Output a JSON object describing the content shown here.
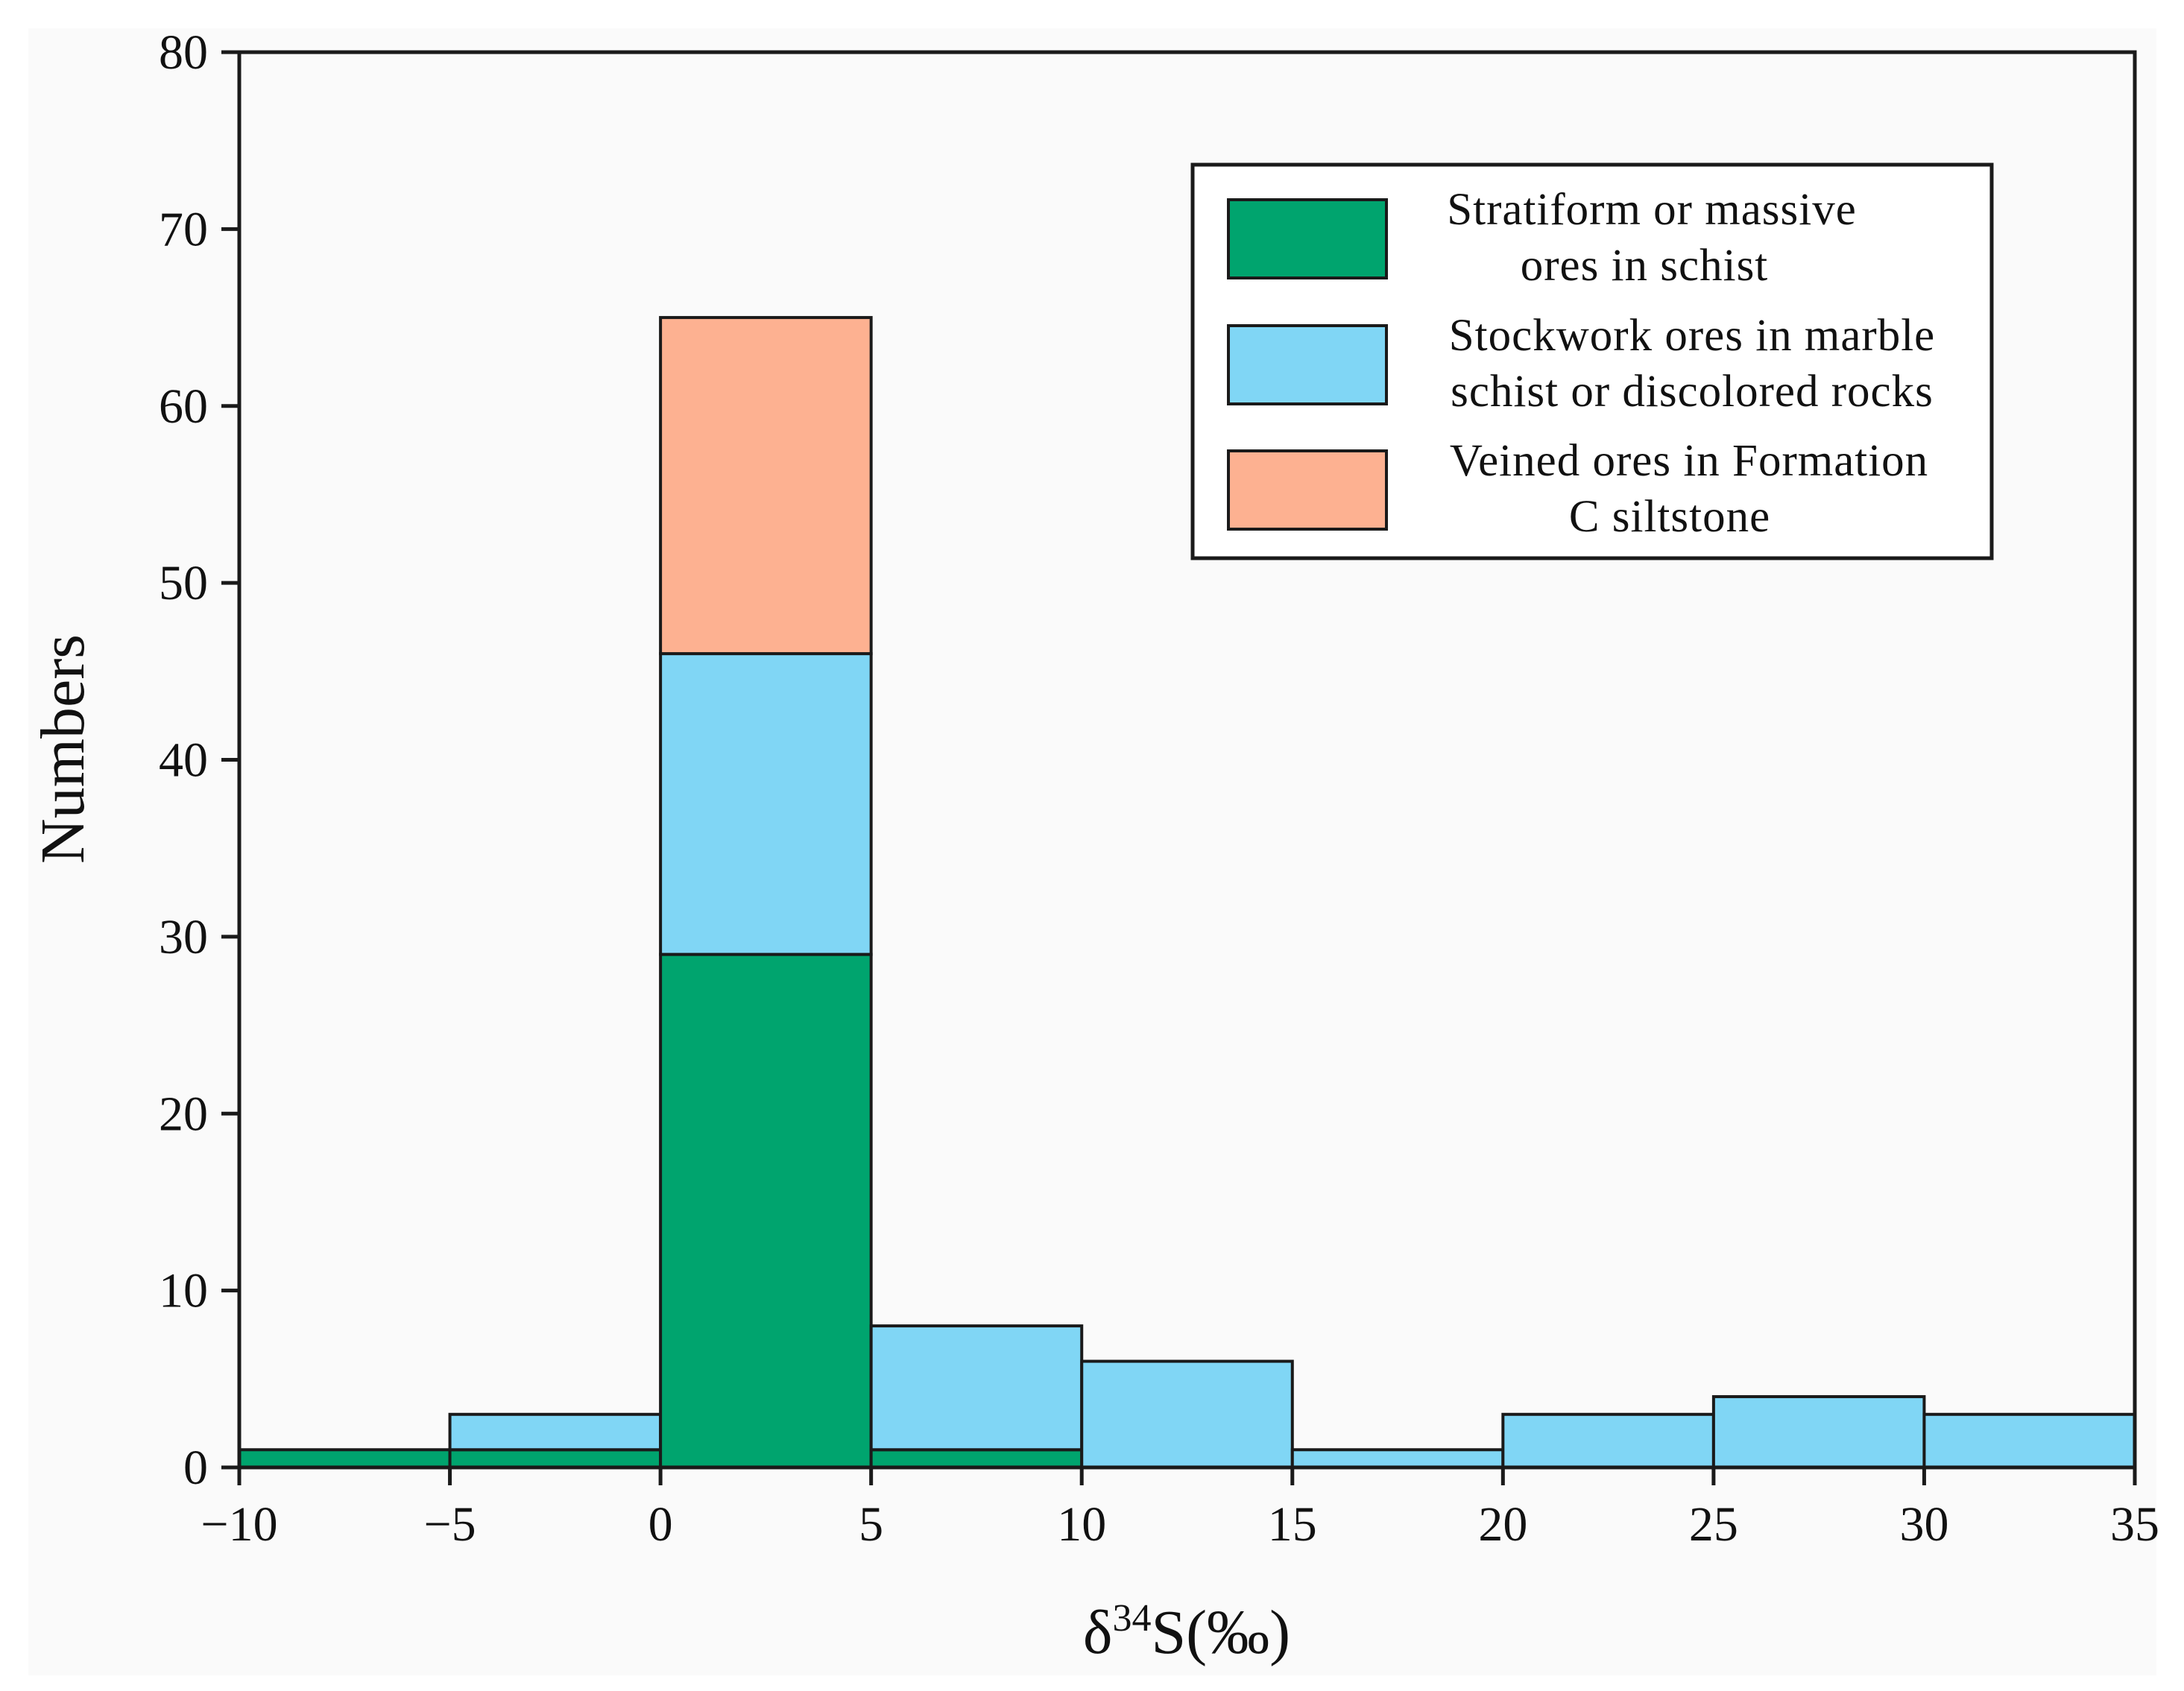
{
  "chart_data": {
    "type": "bar",
    "stacked": true,
    "histogram": true,
    "bin_edges": [
      -10,
      -5,
      0,
      5,
      10,
      15,
      20,
      25,
      30,
      35
    ],
    "x_ticks": [
      "−10",
      "−5",
      "0",
      "5",
      "10",
      "15",
      "20",
      "25",
      "30",
      "35"
    ],
    "y_ticks": [
      "0",
      "10",
      "20",
      "30",
      "40",
      "50",
      "60",
      "70",
      "80"
    ],
    "xlim": [
      -10,
      35
    ],
    "ylim": [
      0,
      80
    ],
    "xlabel": {
      "delta": "δ",
      "sup": "34",
      "rest": "S(‰)"
    },
    "ylabel": "Numbers",
    "grid": false,
    "legend_position": "top-right",
    "series": [
      {
        "name": "Stratiform or massive ores in schist",
        "legend_lines": [
          "Stratiform or massive",
          "ores in schist"
        ],
        "color": "#00a46e",
        "values": [
          1,
          1,
          29,
          1,
          0,
          0,
          0,
          0,
          0
        ]
      },
      {
        "name": "Stockwork ores in marble schist or discolored rocks",
        "legend_lines": [
          "Stockwork ores in marble",
          "schist or discolored rocks"
        ],
        "color": "#80d6f5",
        "values": [
          0,
          2,
          17,
          7,
          6,
          1,
          3,
          4,
          3
        ]
      },
      {
        "name": "Veined ores in Formation C siltstone",
        "legend_lines": [
          "Veined ores in Formation",
          "C siltstone"
        ],
        "color": "#fdb191",
        "values": [
          0,
          0,
          19,
          0,
          0,
          0,
          0,
          0,
          0
        ]
      }
    ]
  }
}
